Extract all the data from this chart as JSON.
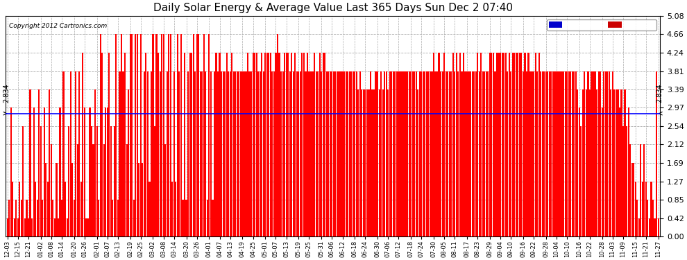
{
  "title": "Daily Solar Energy & Average Value Last 365 Days Sun Dec 2 07:40",
  "copyright": "Copyright 2012 Cartronics.com",
  "average_value": 2.834,
  "bar_color": "#ff0000",
  "average_line_color": "#0000ff",
  "background_color": "#ffffff",
  "ylim_max": 5.08,
  "yticks": [
    0.0,
    0.42,
    0.85,
    1.27,
    1.69,
    2.12,
    2.54,
    2.97,
    3.39,
    3.81,
    4.24,
    4.66,
    5.08
  ],
  "legend_avg_color": "#0000cc",
  "legend_daily_color": "#cc0000",
  "xtick_labels": [
    "12-03",
    "12-15",
    "12-21",
    "01-02",
    "01-08",
    "01-14",
    "01-20",
    "01-26",
    "02-01",
    "02-07",
    "02-13",
    "02-19",
    "02-25",
    "03-02",
    "03-08",
    "03-14",
    "03-20",
    "03-26",
    "04-01",
    "04-07",
    "04-13",
    "04-19",
    "04-25",
    "05-01",
    "05-07",
    "05-13",
    "05-19",
    "05-25",
    "05-31",
    "06-06",
    "06-12",
    "06-18",
    "06-24",
    "06-30",
    "07-06",
    "07-12",
    "07-18",
    "07-24",
    "07-30",
    "08-05",
    "08-11",
    "08-17",
    "08-23",
    "08-29",
    "09-04",
    "09-10",
    "09-16",
    "09-22",
    "09-28",
    "10-04",
    "10-10",
    "10-16",
    "10-22",
    "10-28",
    "11-03",
    "11-09",
    "11-15",
    "11-21",
    "11-27"
  ],
  "daily_values": [
    0.42,
    0.85,
    2.97,
    1.27,
    0.42,
    0.85,
    0.42,
    1.27,
    0.85,
    2.54,
    0.42,
    0.85,
    0.42,
    3.39,
    0.42,
    2.97,
    1.27,
    0.85,
    3.39,
    2.54,
    0.85,
    2.97,
    1.69,
    1.27,
    3.39,
    2.12,
    0.85,
    0.42,
    1.69,
    0.42,
    2.97,
    0.85,
    3.81,
    1.27,
    0.42,
    2.54,
    3.81,
    1.69,
    0.85,
    3.81,
    2.12,
    3.81,
    1.27,
    4.24,
    2.97,
    0.42,
    0.42,
    2.97,
    2.54,
    2.12,
    3.39,
    2.54,
    0.85,
    4.66,
    4.24,
    2.12,
    2.97,
    2.97,
    4.24,
    2.54,
    0.85,
    2.54,
    4.66,
    0.85,
    3.81,
    4.66,
    3.81,
    4.24,
    2.12,
    3.39,
    4.66,
    4.66,
    0.85,
    4.66,
    4.66,
    1.69,
    4.66,
    1.69,
    3.81,
    4.24,
    3.81,
    1.27,
    3.81,
    4.66,
    2.54,
    4.66,
    4.24,
    3.81,
    4.66,
    4.66,
    2.12,
    3.81,
    4.66,
    4.66,
    1.27,
    3.81,
    1.27,
    4.66,
    3.81,
    4.66,
    0.85,
    4.24,
    0.85,
    3.81,
    4.24,
    4.24,
    4.66,
    3.81,
    4.66,
    4.66,
    3.81,
    3.81,
    4.66,
    3.81,
    0.85,
    4.66,
    3.81,
    0.85,
    3.81,
    4.24,
    3.81,
    4.24,
    3.81,
    3.81,
    3.81,
    4.24,
    3.81,
    3.81,
    4.24,
    3.81,
    3.81,
    3.81,
    3.81,
    3.81,
    3.81,
    3.81,
    3.81,
    4.24,
    3.81,
    3.81,
    4.24,
    4.24,
    4.24,
    3.81,
    3.81,
    4.24,
    3.81,
    4.24,
    4.24,
    4.24,
    4.24,
    3.81,
    3.81,
    4.24,
    4.66,
    4.24,
    3.81,
    3.81,
    4.24,
    4.24,
    4.24,
    3.81,
    4.24,
    3.81,
    4.24,
    3.81,
    3.81,
    3.81,
    4.24,
    4.24,
    3.81,
    4.24,
    3.81,
    3.81,
    3.81,
    4.24,
    3.81,
    3.81,
    4.24,
    3.81,
    4.24,
    4.24,
    3.81,
    3.81,
    3.81,
    3.81,
    3.81,
    3.81,
    3.81,
    3.81,
    3.81,
    3.81,
    3.81,
    3.81,
    3.81,
    3.81,
    3.81,
    3.81,
    3.81,
    3.81,
    3.39,
    3.81,
    3.39,
    3.39,
    3.39,
    3.39,
    3.39,
    3.81,
    3.39,
    3.39,
    3.81,
    3.81,
    3.39,
    3.81,
    3.39,
    3.81,
    3.81,
    3.39,
    3.81,
    3.81,
    3.81,
    3.81,
    3.81,
    3.81,
    3.81,
    3.81,
    3.81,
    3.81,
    3.81,
    3.81,
    3.81,
    3.81,
    3.81,
    3.81,
    3.39,
    3.81,
    3.81,
    3.81,
    3.81,
    3.81,
    3.81,
    3.81,
    3.81,
    4.24,
    3.81,
    3.81,
    4.24,
    3.81,
    3.81,
    4.24,
    3.81,
    3.81,
    3.81,
    3.81,
    4.24,
    3.81,
    4.24,
    3.81,
    4.24,
    3.81,
    4.24,
    3.81,
    3.81,
    3.81,
    3.81,
    3.81,
    3.81,
    3.81,
    4.24,
    3.81,
    4.24,
    3.81,
    3.81,
    3.81,
    3.81,
    4.24,
    4.24,
    4.24,
    3.81,
    4.24,
    4.24,
    4.24,
    4.24,
    4.24,
    4.24,
    3.81,
    4.24,
    3.81,
    4.24,
    4.24,
    4.24,
    4.24,
    4.24,
    4.24,
    3.81,
    4.24,
    3.81,
    4.24,
    3.81,
    3.81,
    3.81,
    4.24,
    3.81,
    4.24,
    3.81,
    3.81,
    3.81,
    3.81,
    3.81,
    3.81,
    3.81,
    3.81,
    3.81,
    3.81,
    3.81,
    3.81,
    3.81,
    3.81,
    3.81,
    3.81,
    3.81,
    3.81,
    3.81,
    3.81,
    3.81,
    3.39,
    2.97,
    2.54,
    3.39,
    3.81,
    3.39,
    3.81,
    3.39,
    3.81,
    3.81,
    3.81,
    3.39,
    3.81,
    3.81,
    2.97,
    3.81,
    3.81,
    3.81,
    3.81,
    3.39,
    3.81,
    3.39,
    3.39,
    3.39,
    2.97,
    3.39,
    2.54,
    3.39,
    2.54,
    2.97,
    2.12,
    1.69,
    1.69,
    1.27,
    0.85,
    0.42,
    2.12,
    1.27,
    2.12,
    1.27,
    0.85,
    0.42,
    1.27,
    0.85,
    0.42,
    3.81,
    0.42
  ]
}
